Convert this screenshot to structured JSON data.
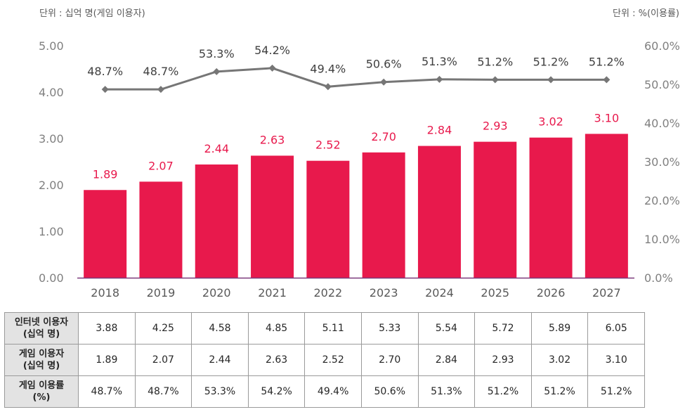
{
  "units": {
    "left": "단위 : 십억 명(게임 이용자)",
    "right": "단위 : %(이용률)"
  },
  "colors": {
    "bar": "#e8194c",
    "line": "#767676",
    "bar_label": "#e8194c",
    "axis_line": "#7b3a7b"
  },
  "chart_data": {
    "type": "bar",
    "categories": [
      "2018",
      "2019",
      "2020",
      "2021",
      "2022",
      "2023",
      "2024",
      "2025",
      "2026",
      "2027"
    ],
    "series": [
      {
        "name": "게임 이용자",
        "type": "bar",
        "axis": "left",
        "values": [
          1.89,
          2.07,
          2.44,
          2.63,
          2.52,
          2.7,
          2.84,
          2.93,
          3.02,
          3.1
        ],
        "labels": [
          "1.89",
          "2.07",
          "2.44",
          "2.63",
          "2.52",
          "2.70",
          "2.84",
          "2.93",
          "3.02",
          "3.10"
        ]
      },
      {
        "name": "게임 이용률",
        "type": "line",
        "axis": "right",
        "values": [
          48.7,
          48.7,
          53.3,
          54.2,
          49.4,
          50.6,
          51.3,
          51.2,
          51.2,
          51.2
        ],
        "labels": [
          "48.7%",
          "48.7%",
          "53.3%",
          "54.2%",
          "49.4%",
          "50.6%",
          "51.3%",
          "51.2%",
          "51.2%",
          "51.2%"
        ]
      }
    ],
    "y_left": {
      "min": 0,
      "max": 5,
      "ticks": [
        "0.00",
        "1.00",
        "2.00",
        "3.00",
        "4.00",
        "5.00"
      ]
    },
    "y_right": {
      "min": 0,
      "max": 60,
      "ticks": [
        "0.0%",
        "10.0%",
        "20.0%",
        "30.0%",
        "40.0%",
        "50.0%",
        "60.0%"
      ]
    },
    "grid": false,
    "legend": "none"
  },
  "table": {
    "rows": [
      {
        "header": [
          "인터넷 이용자",
          "(십억 명)"
        ],
        "values": [
          "3.88",
          "4.25",
          "4.58",
          "4.85",
          "5.11",
          "5.33",
          "5.54",
          "5.72",
          "5.89",
          "6.05"
        ]
      },
      {
        "header": [
          "게임 이용자",
          "(십억 명)"
        ],
        "values": [
          "1.89",
          "2.07",
          "2.44",
          "2.63",
          "2.52",
          "2.70",
          "2.84",
          "2.93",
          "3.02",
          "3.10"
        ]
      },
      {
        "header": [
          "게임 이용률",
          "(%)"
        ],
        "values": [
          "48.7%",
          "48.7%",
          "53.3%",
          "54.2%",
          "49.4%",
          "50.6%",
          "51.3%",
          "51.2%",
          "51.2%",
          "51.2%"
        ]
      }
    ]
  }
}
